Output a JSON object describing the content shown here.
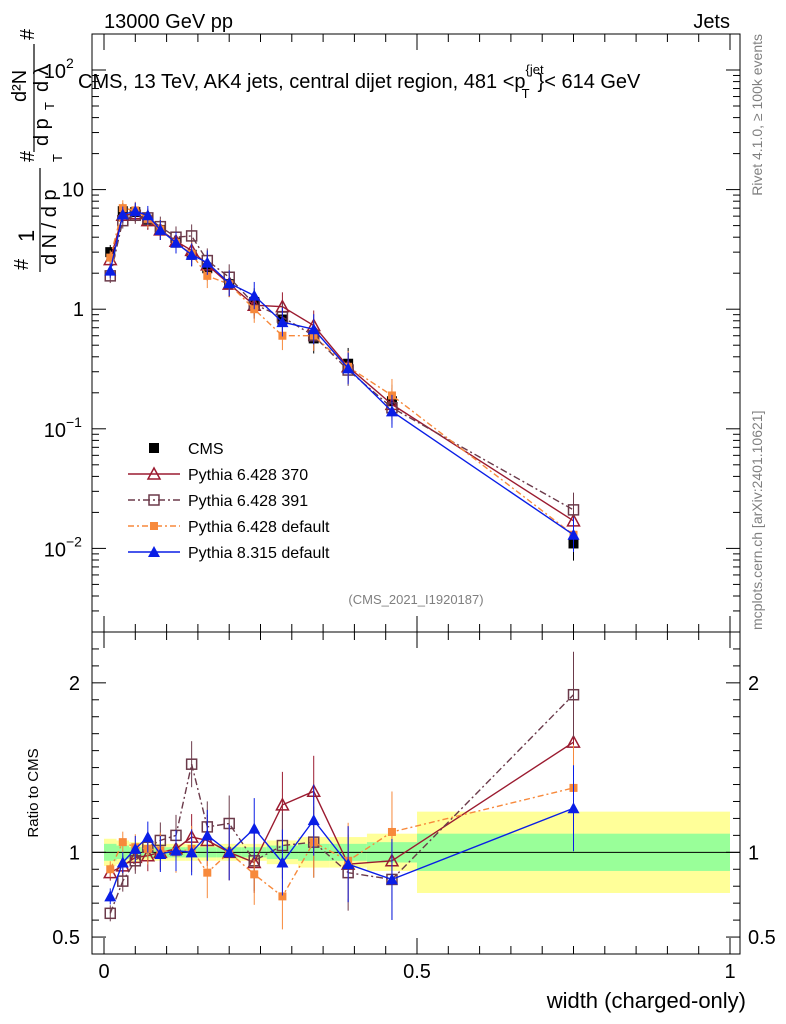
{
  "header": {
    "left": "13000 GeV pp",
    "right": "Jets"
  },
  "title": {
    "main": "CMS, 13 TeV, AK4 jets, central dijet region, 481 <p",
    "sup": "{jet",
    "sub": "T",
    "tail": "}< 614 GeV"
  },
  "side_labels": {
    "rivet": "Rivet 4.1.0, ≥ 100k events",
    "mcplots": "mcplots.cern.ch [arXiv:2401.10621]"
  },
  "watermark": "(CMS_2021_I1920187)",
  "ylabel_main": {
    "hash1": "#",
    "one": "1",
    "dN": "d N / d p",
    "T": "T",
    "hash2": "#",
    "d2N": "d²N",
    "dp": "d p",
    "T2": "T",
    "dl": "d λ",
    "hash3": "#"
  },
  "ylabel_ratio": "Ratio to CMS",
  "xlabel": "width (charged-only)",
  "ticks": {
    "main_y": [
      {
        "v": 10,
        "label": "10"
      },
      {
        "v": 1,
        "label": "1"
      }
    ],
    "main_y_exp": [
      {
        "v": 100,
        "base": "10",
        "exp": "2"
      },
      {
        "v": 0.1,
        "base": "10",
        "exp": "−1"
      },
      {
        "v": 0.01,
        "base": "10",
        "exp": "−2"
      }
    ],
    "ratio_y": [
      {
        "v": 2,
        "label": "2"
      },
      {
        "v": 1,
        "label": "1"
      },
      {
        "v": 0.5,
        "label": "0.5"
      }
    ],
    "x": [
      {
        "v": 0,
        "label": "0"
      },
      {
        "v": 0.5,
        "label": "0.5"
      },
      {
        "v": 1,
        "label": "1"
      }
    ]
  },
  "legend": [
    {
      "key": "cms",
      "label": "CMS"
    },
    {
      "key": "p370",
      "label": "Pythia 6.428 370"
    },
    {
      "key": "p391",
      "label": "Pythia 6.428 391"
    },
    {
      "key": "pdef",
      "label": "Pythia 6.428 default"
    },
    {
      "key": "p8",
      "label": "Pythia 8.315 default"
    }
  ],
  "colors": {
    "cms": "#000000",
    "p370": "#9b1b30",
    "p391": "#6b3a4a",
    "pdef": "#f7893b",
    "p8": "#0a1ee6",
    "band_inner": "#99ff99",
    "band_outer": "#ffff99"
  },
  "chart_data": {
    "type": "line",
    "title": "CMS, 13 TeV, AK4 jets, central dijet region, 481 < pT(jet) < 614 GeV",
    "xlabel": "width (charged-only)",
    "ylabel": "1/N dN/dlambda",
    "xlim": [
      0,
      1
    ],
    "ylim": [
      0.002,
      200
    ],
    "yscale": "log",
    "ratio_ylim": [
      0.4,
      2.3
    ],
    "x": [
      0.01,
      0.03,
      0.05,
      0.07,
      0.09,
      0.115,
      0.14,
      0.165,
      0.2,
      0.24,
      0.285,
      0.335,
      0.39,
      0.46,
      0.75
    ],
    "series": [
      {
        "name": "CMS",
        "key": "cms",
        "values": [
          3.0,
          6.6,
          6.5,
          5.6,
          4.6,
          3.6,
          2.85,
          2.2,
          1.62,
          1.15,
          0.82,
          0.57,
          0.35,
          0.17,
          0.011
        ],
        "ratio": [
          1,
          1,
          1,
          1,
          1,
          1,
          1,
          1,
          1,
          1,
          1,
          1,
          1,
          1,
          1
        ]
      },
      {
        "name": "Pythia 6.428 370",
        "key": "p370",
        "values": [
          2.6,
          6.1,
          6.3,
          5.5,
          4.6,
          3.7,
          3.1,
          2.35,
          1.62,
          1.08,
          1.05,
          0.73,
          0.33,
          0.16,
          0.017
        ],
        "ratio": [
          0.88,
          0.92,
          0.97,
          0.98,
          1.0,
          1.02,
          1.09,
          1.07,
          1.0,
          0.94,
          1.28,
          1.36,
          0.93,
          0.95,
          1.65
        ]
      },
      {
        "name": "Pythia 6.428 391",
        "key": "p391",
        "values": [
          1.9,
          5.5,
          6.1,
          5.8,
          4.9,
          4.0,
          4.1,
          2.55,
          1.85,
          1.1,
          0.86,
          0.6,
          0.31,
          0.15,
          0.021
        ],
        "ratio": [
          0.64,
          0.83,
          0.95,
          1.03,
          1.07,
          1.1,
          1.52,
          1.15,
          1.17,
          0.95,
          1.04,
          1.06,
          0.88,
          0.84,
          1.93
        ]
      },
      {
        "name": "Pythia 6.428 default",
        "key": "pdef",
        "values": [
          2.7,
          7.0,
          6.7,
          5.7,
          4.65,
          3.6,
          2.9,
          1.9,
          1.62,
          1.0,
          0.6,
          0.6,
          0.33,
          0.19,
          0.013
        ],
        "ratio": [
          0.9,
          1.06,
          1.03,
          1.02,
          1.01,
          1.0,
          1.02,
          0.88,
          1.0,
          0.87,
          0.74,
          1.06,
          0.95,
          1.12,
          1.38
        ]
      },
      {
        "name": "Pythia 8.315 default",
        "key": "p8",
        "values": [
          2.1,
          6.2,
          6.6,
          6.1,
          4.6,
          3.6,
          2.85,
          2.45,
          1.65,
          1.3,
          0.78,
          0.68,
          0.32,
          0.14,
          0.013
        ],
        "ratio": [
          0.74,
          0.94,
          1.02,
          1.09,
          0.99,
          1.01,
          1.0,
          1.1,
          1.0,
          1.14,
          0.94,
          1.19,
          0.93,
          0.84,
          1.26
        ]
      }
    ],
    "uncertainty_band": {
      "x_edges": [
        0,
        0.02,
        0.04,
        0.06,
        0.08,
        0.1,
        0.13,
        0.15,
        0.18,
        0.22,
        0.26,
        0.31,
        0.36,
        0.42,
        0.5,
        1.0
      ],
      "inner": [
        0.05,
        0.04,
        0.03,
        0.03,
        0.03,
        0.03,
        0.03,
        0.03,
        0.03,
        0.03,
        0.04,
        0.05,
        0.05,
        0.06,
        0.11
      ],
      "outer": [
        0.08,
        0.07,
        0.06,
        0.05,
        0.05,
        0.05,
        0.05,
        0.05,
        0.05,
        0.05,
        0.07,
        0.09,
        0.09,
        0.11,
        0.24
      ]
    }
  }
}
